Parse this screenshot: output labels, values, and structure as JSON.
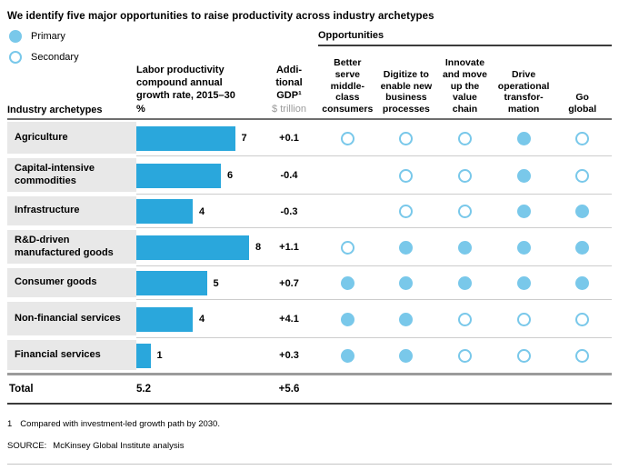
{
  "title": "We identify five major opportunities to raise productivity across industry archetypes",
  "legend": {
    "primary": "Primary",
    "secondary": "Secondary"
  },
  "columns": {
    "industry": "Industry archetypes",
    "productivity_lines": [
      "Labor productivity",
      "compound annual",
      "growth rate, 2015–30"
    ],
    "productivity_unit": "%",
    "gdp_lines": [
      "Addi-",
      "tional",
      "GDP¹"
    ],
    "gdp_unit": "$ trillion",
    "opportunities_title": "Opportunities"
  },
  "opportunity_columns": [
    {
      "label": "Better serve middle-class consumers",
      "lines": [
        "Better",
        "serve",
        "middle-",
        "class",
        "consumers"
      ]
    },
    {
      "label": "Digitize to enable new business processes",
      "lines": [
        "Digitize to",
        "enable new",
        "business",
        "processes"
      ]
    },
    {
      "label": "Innovate and move up the value chain",
      "lines": [
        "Innovate",
        "and move",
        "up the",
        "value",
        "chain"
      ]
    },
    {
      "label": "Drive operational transformation",
      "lines": [
        "Drive",
        "operational",
        "transfor-",
        "mation"
      ]
    },
    {
      "label": "Go global",
      "lines": [
        "Go",
        "global"
      ]
    }
  ],
  "rows": [
    {
      "name": "Agriculture",
      "growth": 7,
      "gdp": "+0.1",
      "opportunities": [
        "secondary",
        "secondary",
        "secondary",
        "primary",
        "secondary"
      ]
    },
    {
      "name": "Capital-intensive commodities",
      "growth": 6,
      "gdp": "-0.4",
      "opportunities": [
        null,
        "secondary",
        "secondary",
        "primary",
        "secondary"
      ]
    },
    {
      "name": "Infrastructure",
      "growth": 4,
      "gdp": "-0.3",
      "opportunities": [
        null,
        "secondary",
        "secondary",
        "primary",
        "primary"
      ]
    },
    {
      "name": "R&D-driven manufactured goods",
      "growth": 8,
      "gdp": "+1.1",
      "opportunities": [
        "secondary",
        "primary",
        "primary",
        "primary",
        "primary"
      ]
    },
    {
      "name": "Consumer goods",
      "growth": 5,
      "gdp": "+0.7",
      "opportunities": [
        "primary",
        "primary",
        "primary",
        "primary",
        "primary"
      ]
    },
    {
      "name": "Non-financial services",
      "growth": 4,
      "gdp": "+4.1",
      "opportunities": [
        "primary",
        "primary",
        "secondary",
        "secondary",
        "secondary"
      ]
    },
    {
      "name": "Financial services",
      "growth": 1,
      "gdp": "+0.3",
      "opportunities": [
        "primary",
        "primary",
        "secondary",
        "secondary",
        "secondary"
      ]
    }
  ],
  "total": {
    "label": "Total",
    "growth": "5.2",
    "gdp": "+5.6"
  },
  "footnote": {
    "marker": "1",
    "text": "Compared with investment-led growth path by 2030."
  },
  "source": {
    "label": "SOURCE:",
    "text": "McKinsey Global Institute analysis"
  },
  "colors": {
    "bar_blue": "#2aa7dc",
    "dot_light_blue": "#79c8ea",
    "label_cell_gray": "#e8e8e8",
    "unit_text_gray": "#9a9a9a"
  },
  "chart_data": {
    "type": "bar",
    "title": "We identify five major opportunities to raise productivity across industry archetypes",
    "orientation": "horizontal",
    "categories": [
      "Agriculture",
      "Capital-intensive commodities",
      "Infrastructure",
      "R&D-driven manufactured goods",
      "Consumer goods",
      "Non-financial services",
      "Financial services"
    ],
    "series": [
      {
        "name": "Labor productivity compound annual growth rate, 2015–30, %",
        "values": [
          7,
          6,
          4,
          8,
          5,
          4,
          1
        ]
      },
      {
        "name": "Additional GDP¹, $ trillion",
        "values": [
          0.1,
          -0.4,
          -0.3,
          1.1,
          0.7,
          4.1,
          0.3
        ]
      }
    ],
    "totals": {
      "labor_productivity_growth": 5.2,
      "additional_gdp_trillion": 5.6
    },
    "xlim": [
      0,
      8.5
    ],
    "grid": false,
    "legend_position": "top-left",
    "opportunity_matrix": {
      "legend": {
        "primary": "filled circle",
        "secondary": "open circle"
      },
      "columns": [
        "Better serve middle-class consumers",
        "Digitize to enable new business processes",
        "Innovate and move up the value chain",
        "Drive operational transformation",
        "Go global"
      ],
      "rows": [
        {
          "category": "Agriculture",
          "marks": [
            "secondary",
            "secondary",
            "secondary",
            "primary",
            "secondary"
          ]
        },
        {
          "category": "Capital-intensive commodities",
          "marks": [
            null,
            "secondary",
            "secondary",
            "primary",
            "secondary"
          ]
        },
        {
          "category": "Infrastructure",
          "marks": [
            null,
            "secondary",
            "secondary",
            "primary",
            "primary"
          ]
        },
        {
          "category": "R&D-driven manufactured goods",
          "marks": [
            "secondary",
            "primary",
            "primary",
            "primary",
            "primary"
          ]
        },
        {
          "category": "Consumer goods",
          "marks": [
            "primary",
            "primary",
            "primary",
            "primary",
            "primary"
          ]
        },
        {
          "category": "Non-financial services",
          "marks": [
            "primary",
            "primary",
            "secondary",
            "secondary",
            "secondary"
          ]
        },
        {
          "category": "Financial services",
          "marks": [
            "primary",
            "primary",
            "secondary",
            "secondary",
            "secondary"
          ]
        }
      ]
    }
  }
}
